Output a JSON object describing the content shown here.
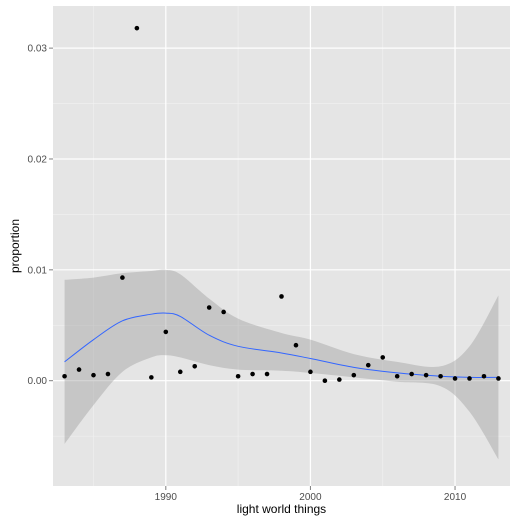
{
  "chart_data": {
    "type": "scatter",
    "xlabel": "light world things",
    "ylabel": "proportion",
    "xlim": [
      1982.2,
      2013.8
    ],
    "ylim": [
      -0.0095,
      0.0338
    ],
    "x_ticks": [
      1990,
      2000,
      2010
    ],
    "x_tick_labels": [
      "1990",
      "2000",
      "2010"
    ],
    "y_ticks": [
      0.0,
      0.01,
      0.02,
      0.03
    ],
    "y_tick_labels": [
      "0.00",
      "0.01",
      "0.02",
      "0.03"
    ],
    "grid": true,
    "points": [
      {
        "x": 1983,
        "y": 0.0004
      },
      {
        "x": 1984,
        "y": 0.001
      },
      {
        "x": 1985,
        "y": 0.0005
      },
      {
        "x": 1986,
        "y": 0.0006
      },
      {
        "x": 1987,
        "y": 0.0093
      },
      {
        "x": 1988,
        "y": 0.0318
      },
      {
        "x": 1989,
        "y": 0.0003
      },
      {
        "x": 1990,
        "y": 0.0044
      },
      {
        "x": 1991,
        "y": 0.0008
      },
      {
        "x": 1992,
        "y": 0.0013
      },
      {
        "x": 1993,
        "y": 0.0066
      },
      {
        "x": 1994,
        "y": 0.0062
      },
      {
        "x": 1995,
        "y": 0.0004
      },
      {
        "x": 1996,
        "y": 0.0006
      },
      {
        "x": 1997,
        "y": 0.0006
      },
      {
        "x": 1998,
        "y": 0.0076
      },
      {
        "x": 1999,
        "y": 0.0032
      },
      {
        "x": 2000,
        "y": 0.0008
      },
      {
        "x": 2001,
        "y": 0.0
      },
      {
        "x": 2002,
        "y": 0.0001
      },
      {
        "x": 2003,
        "y": 0.0005
      },
      {
        "x": 2004,
        "y": 0.0014
      },
      {
        "x": 2005,
        "y": 0.0021
      },
      {
        "x": 2006,
        "y": 0.0004
      },
      {
        "x": 2007,
        "y": 0.0006
      },
      {
        "x": 2008,
        "y": 0.0005
      },
      {
        "x": 2009,
        "y": 0.0004
      },
      {
        "x": 2010,
        "y": 0.0002
      },
      {
        "x": 2011,
        "y": 0.0002
      },
      {
        "x": 2012,
        "y": 0.0004
      },
      {
        "x": 2013,
        "y": 0.0002
      }
    ],
    "smooth": {
      "x": [
        1983,
        1985,
        1987,
        1989,
        1990,
        1991,
        1993,
        1995,
        1998,
        2000,
        2003,
        2006,
        2009,
        2011,
        2013
      ],
      "y": [
        0.0017,
        0.0037,
        0.0054,
        0.006,
        0.0061,
        0.0058,
        0.0041,
        0.0031,
        0.0025,
        0.002,
        0.0012,
        0.0007,
        0.0004,
        0.0003,
        0.0003
      ],
      "lower": [
        -0.0057,
        -0.0022,
        0.0008,
        0.0021,
        0.0023,
        0.0021,
        0.0014,
        0.001,
        0.0009,
        0.0007,
        0.0003,
        -0.0001,
        -0.0005,
        -0.0028,
        -0.0071
      ],
      "upper": [
        0.0091,
        0.0093,
        0.0097,
        0.0099,
        0.01,
        0.0096,
        0.0074,
        0.0056,
        0.0043,
        0.0037,
        0.0024,
        0.0017,
        0.0013,
        0.0031,
        0.0077
      ]
    },
    "colors": {
      "panel_bg": "#e5e5e5",
      "grid_major": "#ffffff",
      "grid_minor": "#f2f2f2",
      "points": "#000000",
      "smooth_line": "#3366ff",
      "ribbon": "#999999"
    }
  }
}
